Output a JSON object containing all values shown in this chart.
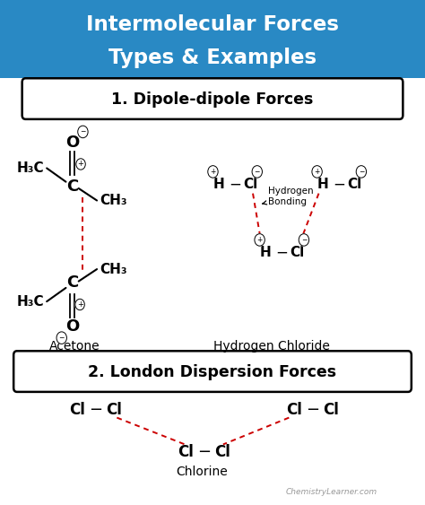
{
  "title_line1": "Intermolecular Forces",
  "title_line2": "Types & Examples",
  "title_bg": "#2989c4",
  "title_fg": "#ffffff",
  "bg_color": "#ffffff",
  "section1_label": "1. Dipole-dipole Forces",
  "section2_label": "2. London Dispersion Forces",
  "acetone_label": "Acetone",
  "hcl_label": "Hydrogen Chloride",
  "chlorine_label": "Chlorine",
  "watermark": "ChemistryLearner.com",
  "red_dash": "#cc0000",
  "black": "#000000"
}
